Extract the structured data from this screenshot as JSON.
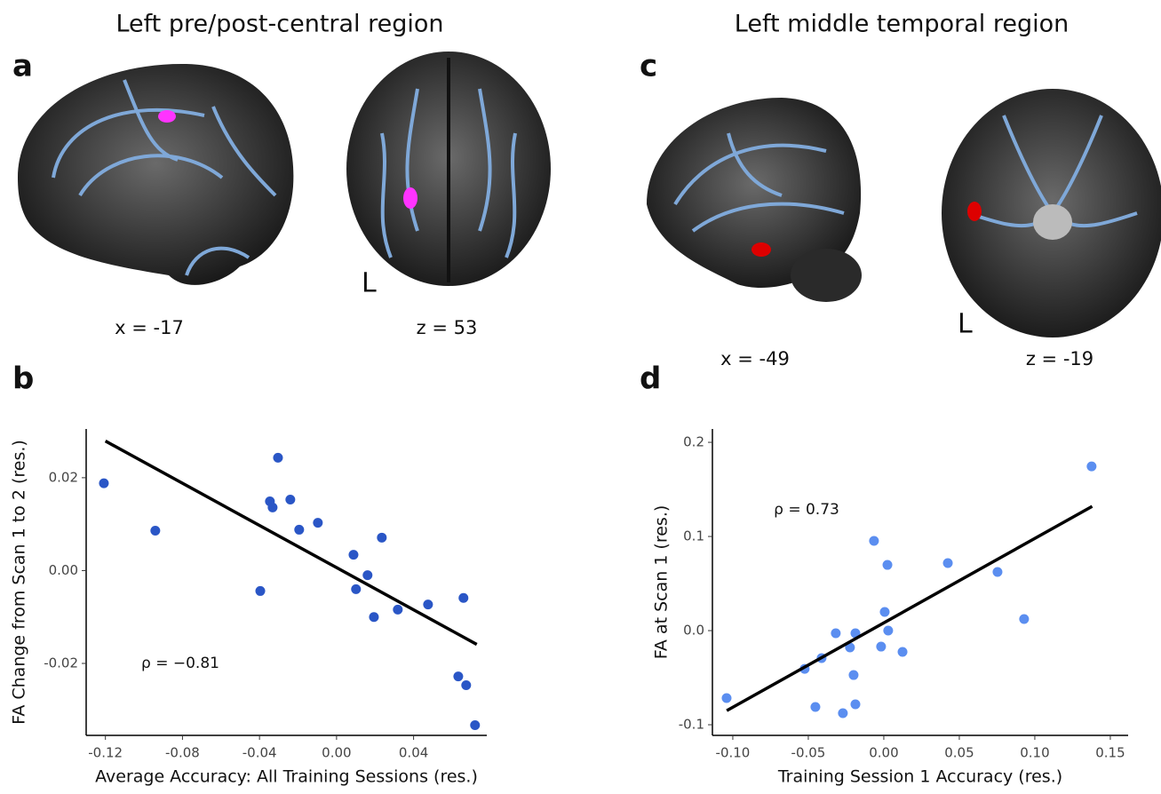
{
  "figure": {
    "region_titles": [
      "Left pre/post-central region",
      "Left middle temporal region"
    ],
    "panel_labels": [
      "a",
      "b",
      "c",
      "d"
    ],
    "coordinates": [
      "x = -17",
      "z = 53",
      "x = -49",
      "z = -19"
    ],
    "orientation_labels": [
      "L",
      "L"
    ]
  },
  "chart_data": [
    {
      "type": "scatter",
      "x_label": "Average Accuracy: All Training Sessions (res.)",
      "y_label": "FA Change from Scan 1 to 2 (res.)",
      "annotation": "ρ = −0.81",
      "color": "#2a56c6",
      "x": [
        -0.1208,
        -0.0941,
        -0.0304,
        -0.0346,
        -0.0332,
        -0.024,
        -0.0097,
        -0.0194,
        -0.0396,
        0.0088,
        0.0101,
        0.0161,
        0.0194,
        0.0235,
        0.0318,
        0.0475,
        0.0659,
        0.0632,
        0.0673,
        0.0719
      ],
      "values": [
        0.0188,
        0.0086,
        0.0243,
        0.0149,
        0.0136,
        0.0153,
        0.0103,
        0.0088,
        -0.0044,
        0.0034,
        -0.004,
        -0.001,
        -0.01,
        0.0071,
        -0.0084,
        -0.0073,
        -0.0059,
        -0.0228,
        -0.0247,
        -0.0333
      ],
      "fit": {
        "x": [
          -0.12,
          0.0728
        ],
        "y": [
          0.0279,
          -0.0159
        ],
        "color": "#000000"
      },
      "xlim": [
        -0.13,
        0.078
      ],
      "ylim": [
        -0.0355,
        0.0305
      ],
      "xticks": [
        -0.12,
        -0.08,
        -0.04,
        {
          "value": 0,
          "label": "0.00"
        },
        0.04
      ],
      "yticks": [
        -0.02,
        {
          "value": 0,
          "label": "0.00"
        },
        0.02
      ]
    },
    {
      "type": "scatter",
      "x_label": "Training Session 1 Accuracy (res.)",
      "y_label": "FA at Scan 1 (res.)",
      "annotation": "ρ = 0.73",
      "color": "#5b8ef0",
      "x": [
        -0.1041,
        -0.0524,
        -0.0412,
        -0.0453,
        -0.0318,
        -0.0224,
        -0.0188,
        -0.02,
        -0.0271,
        -0.0188,
        -0.0065,
        -0.0018,
        0.0006,
        0.0024,
        0.0029,
        0.0124,
        0.0424,
        0.0753,
        0.0929,
        0.1376
      ],
      "values": [
        -0.0717,
        -0.0406,
        -0.0292,
        -0.0811,
        -0.0028,
        -0.0179,
        -0.0028,
        -0.0472,
        -0.0877,
        -0.0783,
        0.0953,
        -0.017,
        0.0198,
        0.0698,
        0,
        -0.0226,
        0.0717,
        0.0623,
        0.0123,
        0.1745
      ],
      "fit": {
        "x": [
          -0.104,
          0.138
        ],
        "y": [
          -0.085,
          0.132
        ],
        "color": "#000000"
      },
      "xlim": [
        -0.1135,
        0.1618
      ],
      "ylim": [
        -0.1113,
        0.2142
      ],
      "xticks": [
        {
          "value": -0.1,
          "label": "-0.10"
        },
        -0.05,
        {
          "value": 0,
          "label": "0.00"
        },
        0.05,
        {
          "value": 0.1,
          "label": "0.10"
        },
        0.15
      ],
      "yticks": [
        -0.1,
        {
          "value": 0,
          "label": "0.0"
        },
        0.1,
        0.2
      ]
    }
  ]
}
